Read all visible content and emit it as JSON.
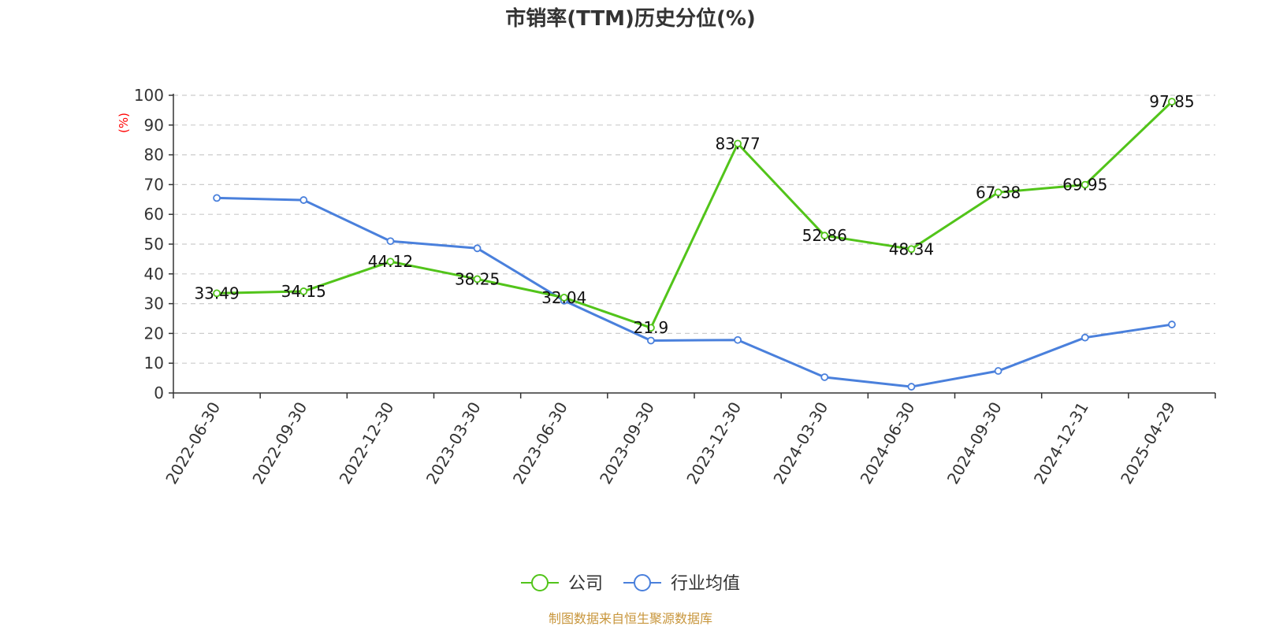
{
  "chart_data": {
    "type": "line",
    "title": "市销率(TTM)历史分位(%)",
    "ylabel": "(%)",
    "xlabel": "",
    "ylim": [
      0,
      100
    ],
    "yticks": [
      0,
      10,
      20,
      30,
      40,
      50,
      60,
      70,
      80,
      90,
      100
    ],
    "categories": [
      "2022-06-30",
      "2022-09-30",
      "2022-12-30",
      "2023-03-30",
      "2023-06-30",
      "2023-09-30",
      "2023-12-30",
      "2024-03-30",
      "2024-06-30",
      "2024-09-30",
      "2024-12-31",
      "2025-04-29"
    ],
    "grid": true,
    "legend_position": "bottom-center",
    "series": [
      {
        "name": "公司",
        "color": "#52c41a",
        "values": [
          33.49,
          34.15,
          44.12,
          38.25,
          32.04,
          21.9,
          83.77,
          52.86,
          48.34,
          67.38,
          69.95,
          97.85
        ],
        "labels": [
          "33.49",
          "34.15",
          "44.12",
          "38.25",
          "32.04",
          "21.9",
          "83.77",
          "52.86",
          "48.34",
          "67.38",
          "69.95",
          "97.85"
        ]
      },
      {
        "name": "行业均值",
        "color": "#4a80dc",
        "values": [
          65.5,
          64.8,
          51.0,
          48.6,
          31.0,
          17.6,
          17.8,
          5.3,
          2.1,
          7.4,
          18.6,
          23.0
        ]
      }
    ]
  },
  "source_note": "制图数据来自恒生聚源数据库"
}
